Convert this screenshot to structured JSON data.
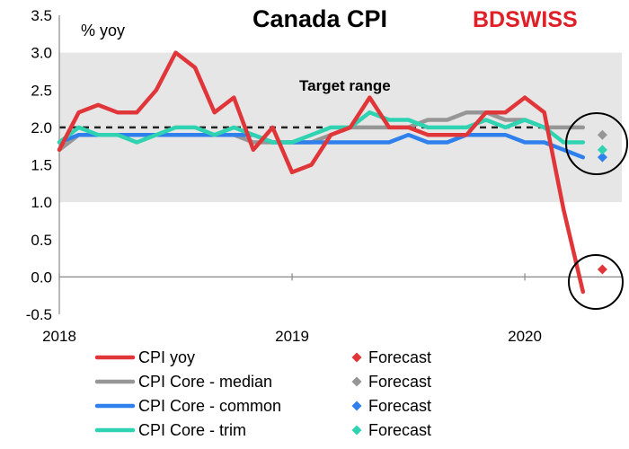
{
  "brand": {
    "prefix": "BD",
    "suffix": "SWISS",
    "color": "#E01F26"
  },
  "chart_data": {
    "type": "line",
    "title": "Canada CPI",
    "ylabel": "% yoy",
    "annotation": "Target range",
    "target_range": [
      1.0,
      3.0
    ],
    "target_line": 2.0,
    "ylim": [
      -0.5,
      3.5
    ],
    "yticks": [
      "-0.5",
      "0.0",
      "0.5",
      "1.0",
      "1.5",
      "2.0",
      "2.5",
      "3.0",
      "3.5"
    ],
    "xlim": [
      "2018-01",
      "2020-06"
    ],
    "xticks": [
      {
        "label": "2018",
        "month": "2018-01"
      },
      {
        "label": "2019",
        "month": "2019-01"
      },
      {
        "label": "2020",
        "month": "2020-01"
      }
    ],
    "series": [
      {
        "name": "CPI yoy",
        "color": "#E0363A",
        "start": "2018-01",
        "values": [
          1.7,
          2.2,
          2.3,
          2.2,
          2.2,
          2.5,
          3.0,
          2.8,
          2.2,
          2.4,
          1.7,
          2.0,
          1.4,
          1.5,
          1.9,
          2.0,
          2.4,
          2.0,
          2.0,
          1.9,
          1.9,
          1.9,
          2.2,
          2.2,
          2.4,
          2.2,
          0.9,
          -0.2
        ],
        "forecast_label": "Forecast",
        "forecast": {
          "month": "2020-05",
          "value": 0.1
        }
      },
      {
        "name": "CPI Core - median",
        "color": "#969696",
        "start": "2018-01",
        "values": [
          1.7,
          1.9,
          1.9,
          1.9,
          1.9,
          1.9,
          1.9,
          1.9,
          1.9,
          1.9,
          1.8,
          1.8,
          1.8,
          1.8,
          1.9,
          2.0,
          2.0,
          2.0,
          2.0,
          2.1,
          2.1,
          2.2,
          2.2,
          2.1,
          2.1,
          2.0,
          2.0,
          2.0
        ],
        "forecast_label": "Forecast",
        "forecast": {
          "month": "2020-05",
          "value": 1.9
        }
      },
      {
        "name": "CPI Core - common",
        "color": "#2F80ED",
        "start": "2018-01",
        "values": [
          1.8,
          1.9,
          1.9,
          1.9,
          1.9,
          1.9,
          1.9,
          1.9,
          1.9,
          1.9,
          1.9,
          1.8,
          1.8,
          1.8,
          1.8,
          1.8,
          1.8,
          1.8,
          1.9,
          1.8,
          1.8,
          1.9,
          1.9,
          1.9,
          1.8,
          1.8,
          1.7,
          1.6
        ],
        "forecast_label": "Forecast",
        "forecast": {
          "month": "2020-05",
          "value": 1.6
        }
      },
      {
        "name": "CPI Core - trim",
        "color": "#2FD3B1",
        "start": "2018-01",
        "values": [
          1.8,
          2.0,
          1.9,
          1.9,
          1.8,
          1.9,
          2.0,
          2.0,
          1.9,
          2.0,
          1.9,
          1.8,
          1.8,
          1.9,
          2.0,
          2.0,
          2.2,
          2.1,
          2.1,
          2.0,
          2.0,
          2.0,
          2.1,
          2.0,
          2.1,
          2.0,
          1.8,
          1.8
        ],
        "forecast_label": "Forecast",
        "forecast": {
          "month": "2020-05",
          "value": 1.7
        }
      }
    ],
    "grid": false,
    "legend": "bottom"
  }
}
